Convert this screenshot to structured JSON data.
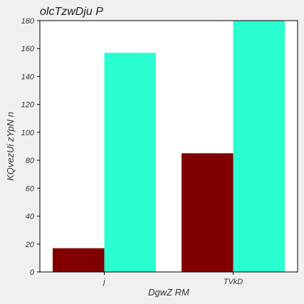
{
  "chart_data": {
    "type": "bar",
    "title": "olcTzwDju P",
    "xlabel": "DgwZ RM",
    "ylabel": "KQvezUi zYpN n",
    "categories": [
      "j",
      "TVkD"
    ],
    "series": [
      {
        "values": [
          17,
          85
        ]
      },
      {
        "values": [
          157,
          180
        ]
      }
    ],
    "ylim": [
      0,
      180
    ],
    "yticks": [
      0,
      20,
      40,
      60,
      80,
      100,
      120,
      140,
      160,
      180
    ],
    "grid": false,
    "legend": "none",
    "colors": [
      "#800000",
      "#2affd2"
    ],
    "plot_background": "#ffffff",
    "page_background": "#f0f0f0"
  }
}
